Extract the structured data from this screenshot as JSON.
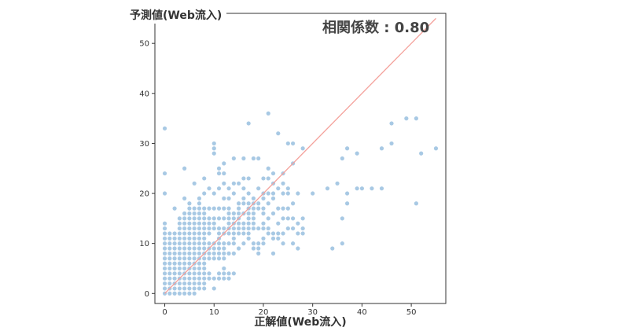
{
  "chart_data": {
    "type": "scatter",
    "xlabel": "正解値(Web流入)",
    "ylabel": "予測値(Web流入)",
    "annotation": "相関係数 : 0.80",
    "xlim": [
      -2,
      57
    ],
    "ylim": [
      -2,
      56
    ],
    "x_ticks": [
      0,
      10,
      20,
      30,
      40,
      50
    ],
    "y_ticks": [
      0,
      10,
      20,
      30,
      40,
      50
    ],
    "grid": false,
    "point_color": "#2f7fbf",
    "line_color": "#f4a19b",
    "diagonal_line": {
      "x": [
        0,
        55
      ],
      "y": [
        0,
        55
      ]
    },
    "points": [
      [
        0,
        0
      ],
      [
        0,
        1
      ],
      [
        0,
        2
      ],
      [
        0,
        3
      ],
      [
        0,
        4
      ],
      [
        0,
        5
      ],
      [
        0,
        6
      ],
      [
        0,
        7
      ],
      [
        0,
        8
      ],
      [
        0,
        9
      ],
      [
        0,
        10
      ],
      [
        0,
        11
      ],
      [
        0,
        12
      ],
      [
        0,
        13
      ],
      [
        0,
        14
      ],
      [
        0,
        20
      ],
      [
        0,
        24
      ],
      [
        0,
        33
      ],
      [
        1,
        0
      ],
      [
        1,
        1
      ],
      [
        1,
        2
      ],
      [
        1,
        3
      ],
      [
        1,
        4
      ],
      [
        1,
        5
      ],
      [
        1,
        6
      ],
      [
        1,
        7
      ],
      [
        1,
        8
      ],
      [
        1,
        9
      ],
      [
        1,
        10
      ],
      [
        1,
        11
      ],
      [
        1,
        12
      ],
      [
        2,
        0
      ],
      [
        2,
        1
      ],
      [
        2,
        2
      ],
      [
        2,
        3
      ],
      [
        2,
        4
      ],
      [
        2,
        5
      ],
      [
        2,
        6
      ],
      [
        2,
        7
      ],
      [
        2,
        8
      ],
      [
        2,
        9
      ],
      [
        2,
        10
      ],
      [
        2,
        11
      ],
      [
        2,
        12
      ],
      [
        2,
        17
      ],
      [
        3,
        0
      ],
      [
        3,
        1
      ],
      [
        3,
        2
      ],
      [
        3,
        3
      ],
      [
        3,
        4
      ],
      [
        3,
        5
      ],
      [
        3,
        6
      ],
      [
        3,
        7
      ],
      [
        3,
        8
      ],
      [
        3,
        9
      ],
      [
        3,
        10
      ],
      [
        3,
        11
      ],
      [
        3,
        12
      ],
      [
        3,
        13
      ],
      [
        3,
        14
      ],
      [
        3,
        15
      ],
      [
        4,
        0
      ],
      [
        4,
        1
      ],
      [
        4,
        2
      ],
      [
        4,
        3
      ],
      [
        4,
        4
      ],
      [
        4,
        5
      ],
      [
        4,
        6
      ],
      [
        4,
        7
      ],
      [
        4,
        8
      ],
      [
        4,
        9
      ],
      [
        4,
        10
      ],
      [
        4,
        11
      ],
      [
        4,
        12
      ],
      [
        4,
        13
      ],
      [
        4,
        14
      ],
      [
        4,
        15
      ],
      [
        4,
        16
      ],
      [
        4,
        19
      ],
      [
        4,
        25
      ],
      [
        5,
        0
      ],
      [
        5,
        1
      ],
      [
        5,
        2
      ],
      [
        5,
        3
      ],
      [
        5,
        4
      ],
      [
        5,
        5
      ],
      [
        5,
        6
      ],
      [
        5,
        7
      ],
      [
        5,
        8
      ],
      [
        5,
        9
      ],
      [
        5,
        10
      ],
      [
        5,
        11
      ],
      [
        5,
        12
      ],
      [
        5,
        13
      ],
      [
        5,
        14
      ],
      [
        5,
        15
      ],
      [
        5,
        16
      ],
      [
        5,
        17
      ],
      [
        5,
        18
      ],
      [
        6,
        0
      ],
      [
        6,
        1
      ],
      [
        6,
        2
      ],
      [
        6,
        3
      ],
      [
        6,
        4
      ],
      [
        6,
        5
      ],
      [
        6,
        6
      ],
      [
        6,
        7
      ],
      [
        6,
        8
      ],
      [
        6,
        9
      ],
      [
        6,
        10
      ],
      [
        6,
        11
      ],
      [
        6,
        12
      ],
      [
        6,
        13
      ],
      [
        6,
        14
      ],
      [
        6,
        15
      ],
      [
        6,
        16
      ],
      [
        6,
        17
      ],
      [
        6,
        22
      ],
      [
        7,
        1
      ],
      [
        7,
        2
      ],
      [
        7,
        3
      ],
      [
        7,
        4
      ],
      [
        7,
        5
      ],
      [
        7,
        6
      ],
      [
        7,
        7
      ],
      [
        7,
        8
      ],
      [
        7,
        9
      ],
      [
        7,
        10
      ],
      [
        7,
        11
      ],
      [
        7,
        12
      ],
      [
        7,
        13
      ],
      [
        7,
        14
      ],
      [
        7,
        15
      ],
      [
        7,
        16
      ],
      [
        7,
        17
      ],
      [
        7,
        18
      ],
      [
        7,
        19
      ],
      [
        8,
        1
      ],
      [
        8,
        2
      ],
      [
        8,
        3
      ],
      [
        8,
        4
      ],
      [
        8,
        5
      ],
      [
        8,
        6
      ],
      [
        8,
        7
      ],
      [
        8,
        8
      ],
      [
        8,
        9
      ],
      [
        8,
        10
      ],
      [
        8,
        11
      ],
      [
        8,
        12
      ],
      [
        8,
        13
      ],
      [
        8,
        14
      ],
      [
        8,
        15
      ],
      [
        8,
        16
      ],
      [
        8,
        17
      ],
      [
        8,
        20
      ],
      [
        8,
        23
      ],
      [
        9,
        3
      ],
      [
        9,
        4
      ],
      [
        9,
        7
      ],
      [
        9,
        8
      ],
      [
        9,
        9
      ],
      [
        9,
        10
      ],
      [
        9,
        12
      ],
      [
        9,
        13
      ],
      [
        9,
        14
      ],
      [
        9,
        15
      ],
      [
        9,
        17
      ],
      [
        9,
        21
      ],
      [
        10,
        1
      ],
      [
        10,
        3
      ],
      [
        10,
        7
      ],
      [
        10,
        8
      ],
      [
        10,
        9
      ],
      [
        10,
        10
      ],
      [
        10,
        13
      ],
      [
        10,
        14
      ],
      [
        10,
        15
      ],
      [
        10,
        17
      ],
      [
        10,
        20
      ],
      [
        10,
        28
      ],
      [
        10,
        29
      ],
      [
        10,
        30
      ],
      [
        11,
        3
      ],
      [
        11,
        4
      ],
      [
        11,
        7
      ],
      [
        11,
        8
      ],
      [
        11,
        9
      ],
      [
        11,
        10
      ],
      [
        11,
        11
      ],
      [
        11,
        12
      ],
      [
        11,
        13
      ],
      [
        11,
        15
      ],
      [
        11,
        17
      ],
      [
        11,
        21
      ],
      [
        11,
        24
      ],
      [
        11,
        25
      ],
      [
        12,
        3
      ],
      [
        12,
        4
      ],
      [
        12,
        5
      ],
      [
        12,
        7
      ],
      [
        12,
        8
      ],
      [
        12,
        9
      ],
      [
        12,
        10
      ],
      [
        12,
        12
      ],
      [
        12,
        13
      ],
      [
        12,
        15
      ],
      [
        12,
        17
      ],
      [
        12,
        19
      ],
      [
        12,
        22
      ],
      [
        12,
        24
      ],
      [
        12,
        26
      ],
      [
        13,
        3
      ],
      [
        13,
        4
      ],
      [
        13,
        8
      ],
      [
        13,
        10
      ],
      [
        13,
        12
      ],
      [
        13,
        13
      ],
      [
        13,
        14
      ],
      [
        13,
        15
      ],
      [
        13,
        16
      ],
      [
        13,
        17
      ],
      [
        13,
        19
      ],
      [
        13,
        21
      ],
      [
        14,
        4
      ],
      [
        14,
        8
      ],
      [
        14,
        10
      ],
      [
        14,
        11
      ],
      [
        14,
        12
      ],
      [
        14,
        13
      ],
      [
        14,
        14
      ],
      [
        14,
        15
      ],
      [
        14,
        16
      ],
      [
        14,
        20
      ],
      [
        14,
        22
      ],
      [
        14,
        27
      ],
      [
        15,
        9
      ],
      [
        15,
        12
      ],
      [
        15,
        13
      ],
      [
        15,
        14
      ],
      [
        15,
        15
      ],
      [
        15,
        16
      ],
      [
        15,
        17
      ],
      [
        15,
        18
      ],
      [
        15,
        22
      ],
      [
        16,
        10
      ],
      [
        16,
        12
      ],
      [
        16,
        13
      ],
      [
        16,
        14
      ],
      [
        16,
        16
      ],
      [
        16,
        18
      ],
      [
        16,
        19
      ],
      [
        16,
        21
      ],
      [
        16,
        23
      ],
      [
        16,
        27
      ],
      [
        17,
        11
      ],
      [
        17,
        12
      ],
      [
        17,
        13
      ],
      [
        17,
        14
      ],
      [
        17,
        15
      ],
      [
        17,
        16
      ],
      [
        17,
        17
      ],
      [
        17,
        18
      ],
      [
        17,
        20
      ],
      [
        17,
        23
      ],
      [
        17,
        34
      ],
      [
        18,
        9
      ],
      [
        18,
        10
      ],
      [
        18,
        13
      ],
      [
        18,
        14
      ],
      [
        18,
        15
      ],
      [
        18,
        16
      ],
      [
        18,
        17
      ],
      [
        18,
        18
      ],
      [
        18,
        19
      ],
      [
        18,
        27
      ],
      [
        19,
        8
      ],
      [
        19,
        9
      ],
      [
        19,
        10
      ],
      [
        19,
        13
      ],
      [
        19,
        17
      ],
      [
        19,
        18
      ],
      [
        19,
        21
      ],
      [
        19,
        27
      ],
      [
        20,
        10
      ],
      [
        20,
        11
      ],
      [
        20,
        13
      ],
      [
        20,
        14
      ],
      [
        20,
        16
      ],
      [
        20,
        17
      ],
      [
        20,
        19
      ],
      [
        20,
        20
      ],
      [
        20,
        23
      ],
      [
        21,
        12
      ],
      [
        21,
        13
      ],
      [
        21,
        15
      ],
      [
        21,
        18
      ],
      [
        21,
        20
      ],
      [
        21,
        23
      ],
      [
        21,
        25
      ],
      [
        21,
        36
      ],
      [
        22,
        8
      ],
      [
        22,
        11
      ],
      [
        22,
        12
      ],
      [
        22,
        16
      ],
      [
        22,
        19
      ],
      [
        22,
        20
      ],
      [
        22,
        22
      ],
      [
        22,
        24
      ],
      [
        23,
        11
      ],
      [
        23,
        12
      ],
      [
        23,
        14
      ],
      [
        23,
        17
      ],
      [
        23,
        21
      ],
      [
        23,
        32
      ],
      [
        24,
        10
      ],
      [
        24,
        12
      ],
      [
        24,
        15
      ],
      [
        24,
        17
      ],
      [
        24,
        20
      ],
      [
        24,
        22
      ],
      [
        24,
        24
      ],
      [
        25,
        13
      ],
      [
        25,
        15
      ],
      [
        25,
        17
      ],
      [
        25,
        20
      ],
      [
        25,
        21
      ],
      [
        25,
        30
      ],
      [
        26,
        10
      ],
      [
        26,
        13
      ],
      [
        26,
        15
      ],
      [
        26,
        18
      ],
      [
        26,
        26
      ],
      [
        26,
        30
      ],
      [
        27,
        9
      ],
      [
        27,
        12
      ],
      [
        27,
        14
      ],
      [
        27,
        20
      ],
      [
        28,
        12
      ],
      [
        28,
        13
      ],
      [
        28,
        15
      ],
      [
        28,
        29
      ],
      [
        30,
        20
      ],
      [
        33,
        21
      ],
      [
        34,
        9
      ],
      [
        35,
        22
      ],
      [
        36,
        10
      ],
      [
        36,
        15
      ],
      [
        36,
        27
      ],
      [
        37,
        18
      ],
      [
        37,
        20
      ],
      [
        37,
        29
      ],
      [
        39,
        21
      ],
      [
        39,
        28
      ],
      [
        40,
        21
      ],
      [
        42,
        21
      ],
      [
        44,
        21
      ],
      [
        44,
        29
      ],
      [
        46,
        30
      ],
      [
        46,
        34
      ],
      [
        49,
        35
      ],
      [
        51,
        18
      ],
      [
        51,
        35
      ],
      [
        52,
        28
      ],
      [
        55,
        29
      ]
    ]
  }
}
